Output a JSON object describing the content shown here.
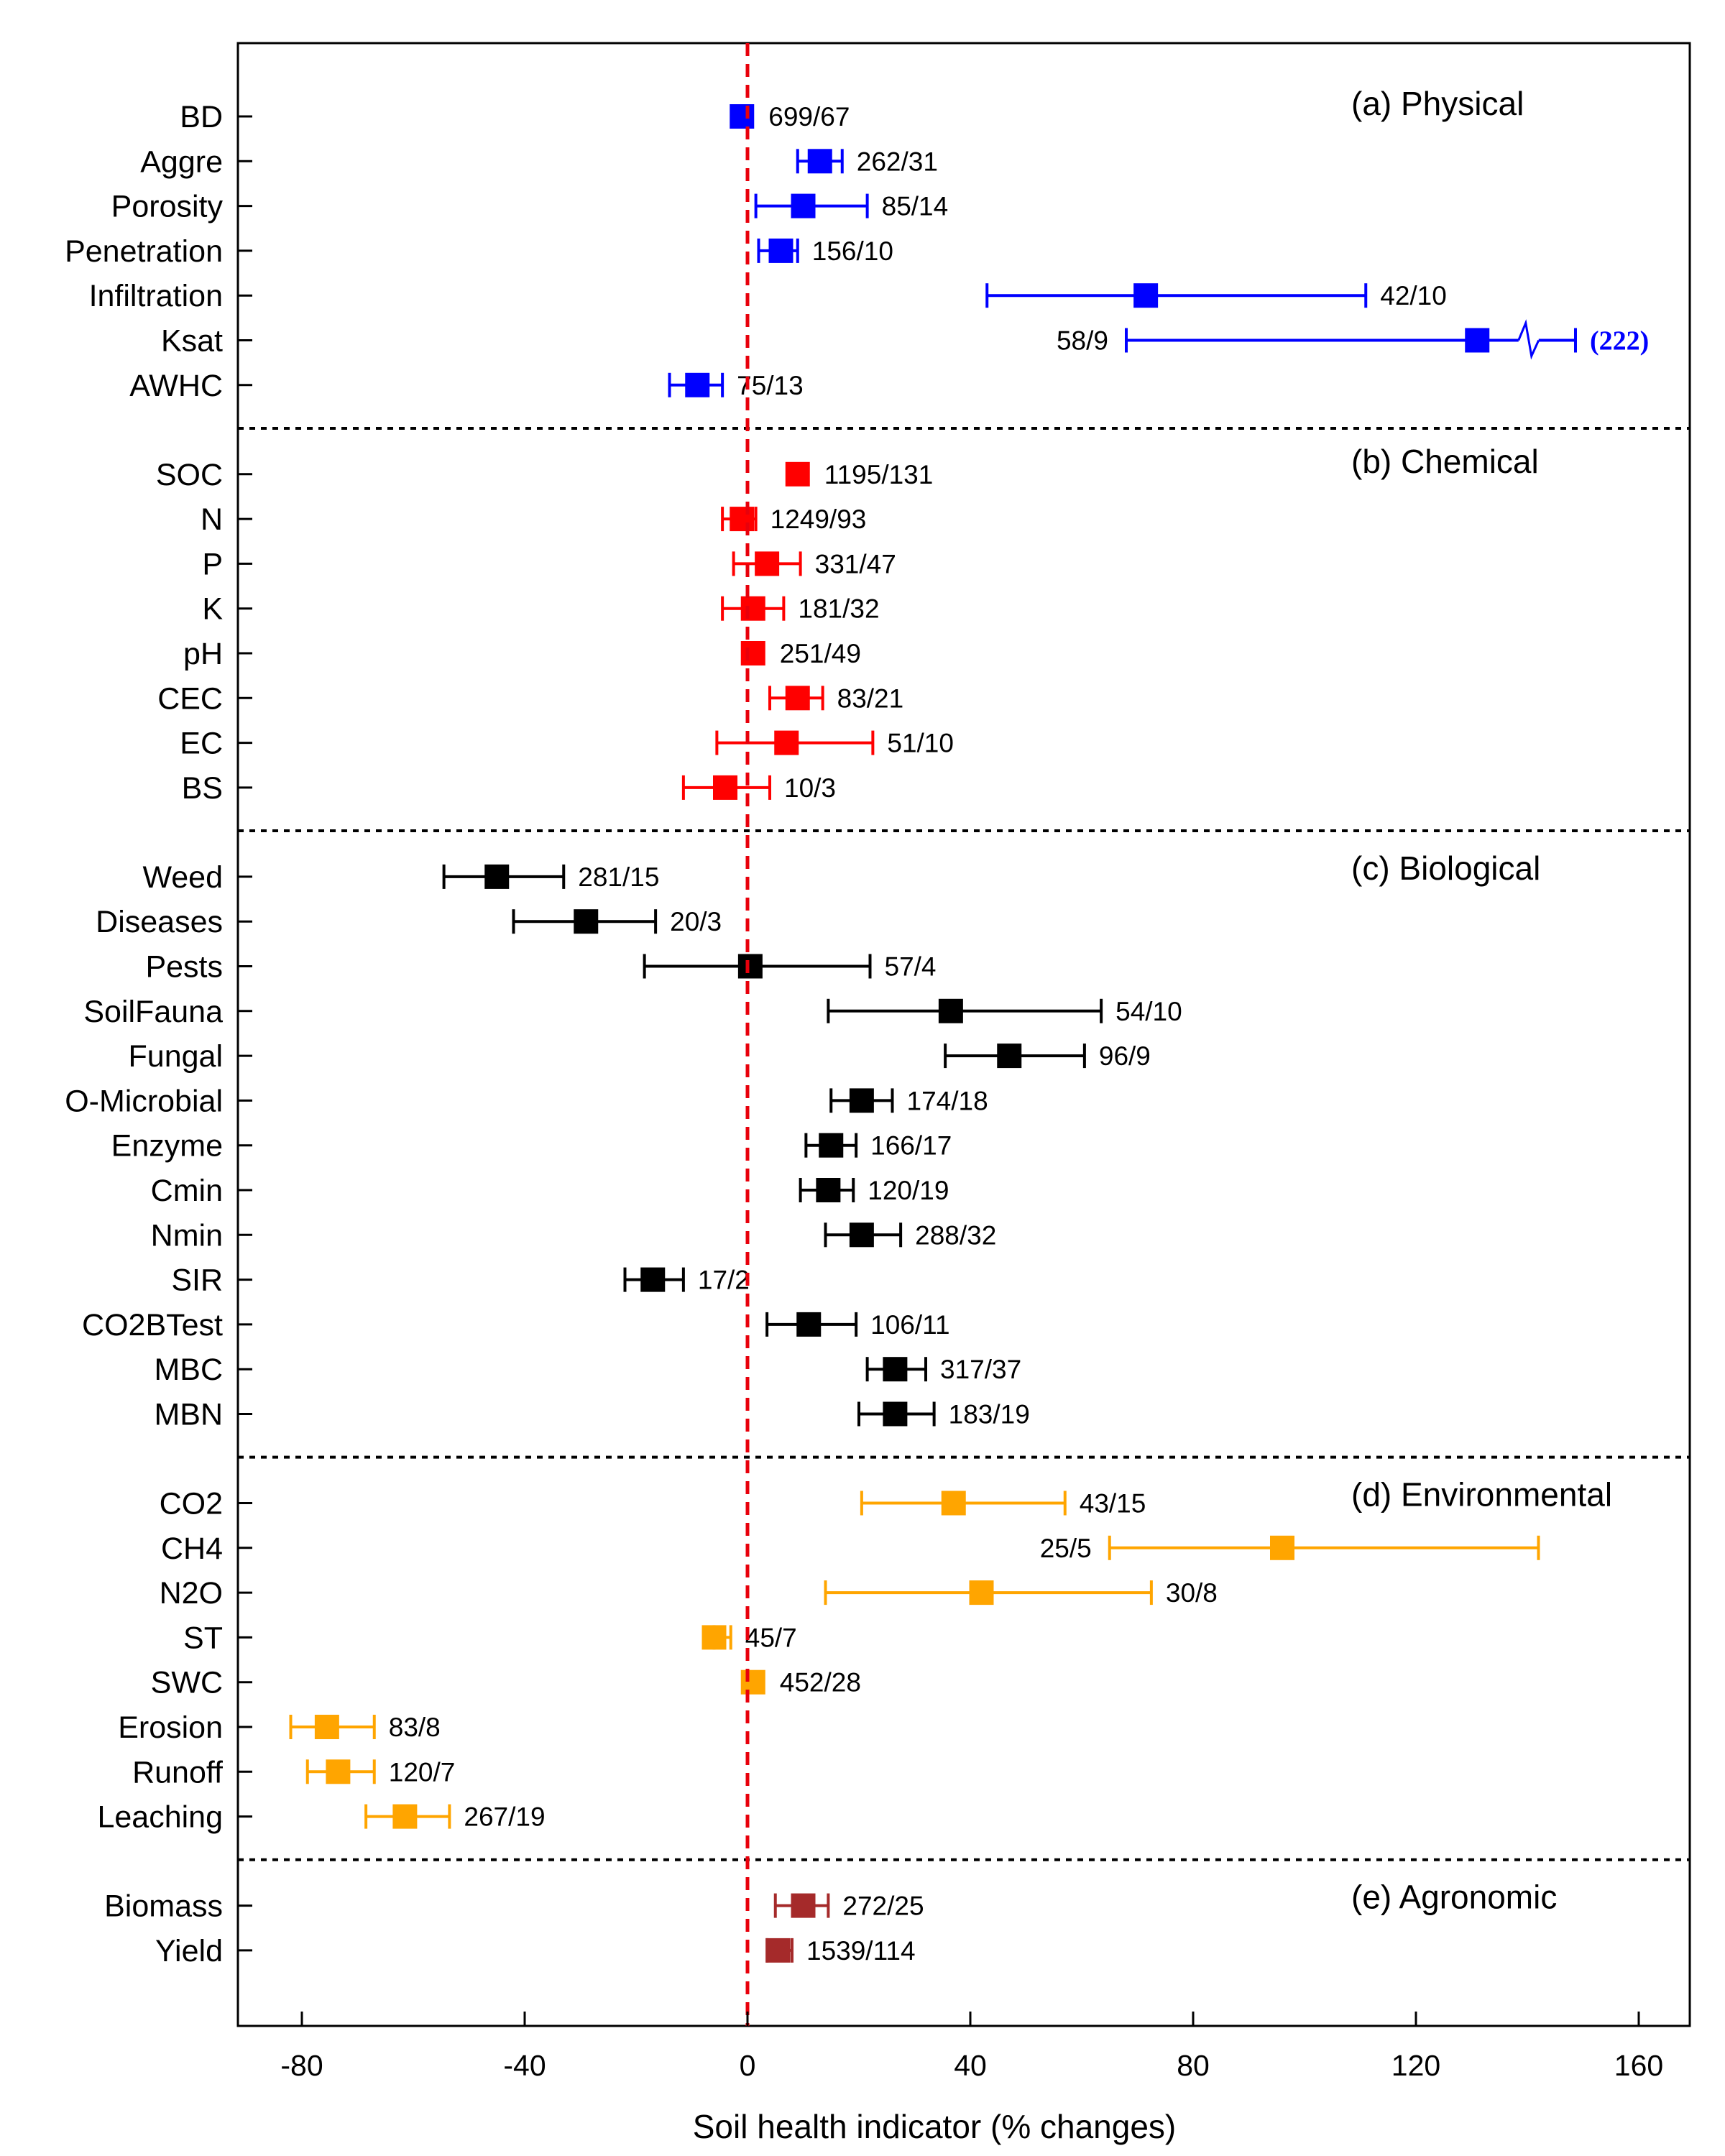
{
  "chart_data": {
    "type": "forest",
    "xlabel": "Soil health indicator (% changes)",
    "xlim": [
      -92,
      170
    ],
    "xticks": [
      -80,
      -40,
      0,
      40,
      80,
      120,
      160
    ],
    "reference_line_x": 0,
    "reference_line_color": "#e8000b",
    "panels": [
      {
        "title": "(a) Physical",
        "color": "#0000ff",
        "rows": [
          {
            "label": "BD",
            "mean": -1,
            "lo": -1,
            "hi": -1,
            "n": "699/67"
          },
          {
            "label": "Aggre",
            "mean": 13,
            "lo": 9,
            "hi": 17,
            "n": "262/31"
          },
          {
            "label": "Porosity",
            "mean": 10,
            "lo": 1.5,
            "hi": 21.5,
            "n": "85/14"
          },
          {
            "label": "Penetration",
            "mean": 6,
            "lo": 2,
            "hi": 9,
            "n": "156/10"
          },
          {
            "label": "Infiltration",
            "mean": 71.5,
            "lo": 43,
            "hi": 111,
            "n": "42/10"
          },
          {
            "label": "Ksat",
            "mean": 131,
            "lo": 68,
            "hi": 222,
            "n": "58/9",
            "n_left": true,
            "axis_break": true,
            "hi_label": "(222)"
          },
          {
            "label": "AWHC",
            "mean": -9,
            "lo": -14,
            "hi": -4.5,
            "n": "75/13"
          }
        ]
      },
      {
        "title": "(b) Chemical",
        "color": "#ff0000",
        "rows": [
          {
            "label": "SOC",
            "mean": 9,
            "lo": 9,
            "hi": 9,
            "n": "1195/131"
          },
          {
            "label": "N",
            "mean": -1,
            "lo": -4.5,
            "hi": 1.5,
            "n": "1249/93"
          },
          {
            "label": "P",
            "mean": 3.5,
            "lo": -2.5,
            "hi": 9.5,
            "n": "331/47"
          },
          {
            "label": "K",
            "mean": 1,
            "lo": -4.5,
            "hi": 6.5,
            "n": "181/32"
          },
          {
            "label": "pH",
            "mean": 1,
            "lo": 1,
            "hi": 1,
            "n": "251/49"
          },
          {
            "label": "CEC",
            "mean": 9,
            "lo": 4,
            "hi": 13.5,
            "n": "83/21"
          },
          {
            "label": "EC",
            "mean": 7,
            "lo": -5.5,
            "hi": 22.5,
            "n": "51/10"
          },
          {
            "label": "BS",
            "mean": -4,
            "lo": -11.5,
            "hi": 4,
            "n": "10/3"
          }
        ]
      },
      {
        "title": "(c) Biological",
        "color": "#000000",
        "rows": [
          {
            "label": "Weed",
            "mean": -45,
            "lo": -54.5,
            "hi": -33,
            "n": "281/15"
          },
          {
            "label": "Diseases",
            "mean": -29,
            "lo": -42,
            "hi": -16.5,
            "n": "20/3"
          },
          {
            "label": "Pests",
            "mean": 0.5,
            "lo": -18.5,
            "hi": 22,
            "n": "57/4"
          },
          {
            "label": "SoilFauna",
            "mean": 36.5,
            "lo": 14.5,
            "hi": 63.5,
            "n": "54/10"
          },
          {
            "label": "Fungal",
            "mean": 47,
            "lo": 35.5,
            "hi": 60.5,
            "n": "96/9"
          },
          {
            "label": "O-Microbial",
            "mean": 20.5,
            "lo": 15,
            "hi": 26,
            "n": "174/18"
          },
          {
            "label": "Enzyme",
            "mean": 15,
            "lo": 10.5,
            "hi": 19.5,
            "n": "166/17"
          },
          {
            "label": "Cmin",
            "mean": 14.5,
            "lo": 9.5,
            "hi": 19,
            "n": "120/19"
          },
          {
            "label": "Nmin",
            "mean": 20.5,
            "lo": 14,
            "hi": 27.5,
            "n": "288/32"
          },
          {
            "label": "SIR",
            "mean": -17,
            "lo": -22,
            "hi": -11.5,
            "n": "17/2"
          },
          {
            "label": "CO2BTest",
            "mean": 11,
            "lo": 3.5,
            "hi": 19.5,
            "n": "106/11"
          },
          {
            "label": "MBC",
            "mean": 26.5,
            "lo": 21.5,
            "hi": 32,
            "n": "317/37"
          },
          {
            "label": "MBN",
            "mean": 26.5,
            "lo": 20,
            "hi": 33.5,
            "n": "183/19"
          }
        ]
      },
      {
        "title": "(d) Environmental",
        "color": "#ffa500",
        "rows": [
          {
            "label": "CO2",
            "mean": 37,
            "lo": 20.5,
            "hi": 57,
            "n": "43/15"
          },
          {
            "label": "CH4",
            "mean": 96,
            "lo": 65,
            "hi": 142,
            "n": "25/5",
            "n_left": true
          },
          {
            "label": "N2O",
            "mean": 42,
            "lo": 14,
            "hi": 72.5,
            "n": "30/8"
          },
          {
            "label": "ST",
            "mean": -6,
            "lo": -6,
            "hi": -3,
            "n": "45/7"
          },
          {
            "label": "SWC",
            "mean": 1,
            "lo": 1,
            "hi": 1,
            "n": "452/28"
          },
          {
            "label": "Erosion",
            "mean": -75.5,
            "lo": -82,
            "hi": -67,
            "n": "83/8"
          },
          {
            "label": "Runoff",
            "mean": -73.5,
            "lo": -79,
            "hi": -67,
            "n": "120/7"
          },
          {
            "label": "Leaching",
            "mean": -61.5,
            "lo": -68.5,
            "hi": -53.5,
            "n": "267/19"
          }
        ]
      },
      {
        "title": "(e) Agronomic",
        "color": "#a52a2a",
        "rows": [
          {
            "label": "Biomass",
            "mean": 10,
            "lo": 5,
            "hi": 14.5,
            "n": "272/25"
          },
          {
            "label": "Yield",
            "mean": 5.5,
            "lo": 3.5,
            "hi": 8,
            "n": "1539/114"
          }
        ]
      }
    ]
  }
}
